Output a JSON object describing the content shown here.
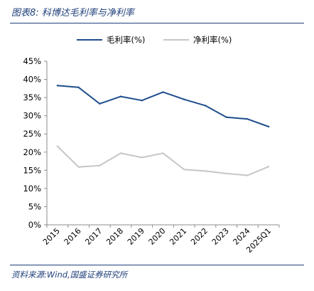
{
  "figure": {
    "title": "图表8:  科博达毛利率与净利率",
    "source": "资料来源:Wind,国盛证券研究所"
  },
  "chart_data": {
    "type": "line",
    "categories": [
      "2015",
      "2016",
      "2017",
      "2018",
      "2019",
      "2020",
      "2021",
      "2022",
      "2023",
      "2024",
      "2025Q1"
    ],
    "series": [
      {
        "name": "毛利率(%)",
        "color": "#1f4e8c",
        "values": [
          38.3,
          37.8,
          33.3,
          35.3,
          34.2,
          36.5,
          34.5,
          32.8,
          29.6,
          29.1,
          27.0
        ]
      },
      {
        "name": "净利率(%)",
        "color": "#c6c6c6",
        "values": [
          21.6,
          15.9,
          16.3,
          19.7,
          18.5,
          19.7,
          15.2,
          14.8,
          14.1,
          13.6,
          16.0
        ]
      }
    ],
    "y_ticks": [
      "0%",
      "5%",
      "10%",
      "15%",
      "20%",
      "25%",
      "30%",
      "35%",
      "40%",
      "45%"
    ],
    "ylim": [
      0,
      45
    ],
    "grid": false,
    "legend_position": "top-center"
  }
}
